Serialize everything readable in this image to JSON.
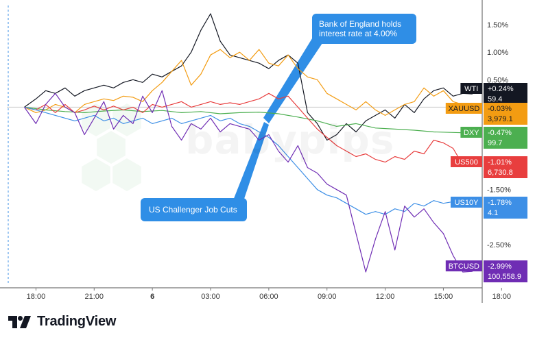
{
  "chart_data": {
    "type": "line",
    "title": "",
    "xlabel": "",
    "ylabel": "",
    "x_ticks": [
      "18:00",
      "21:00",
      "6",
      "03:00",
      "06:00",
      "09:00",
      "12:00",
      "15:00",
      "18:00"
    ],
    "y_ticks": [
      "1.50%",
      "1.00%",
      "0.50%",
      "-1.50%",
      "-2.50%"
    ],
    "ylim": [
      -3.2,
      1.85
    ],
    "y_unit": "%",
    "x_range_hours": [
      -7.5,
      17
    ],
    "series": [
      {
        "name": "WTI",
        "color": "#131722",
        "badge_value": "+0.24%",
        "badge_price": "59.4",
        "x": [
          -6.6,
          -6,
          -5.5,
          -5,
          -4.5,
          -4,
          -3.5,
          -3,
          -2.5,
          -2,
          -1.5,
          -1,
          -0.5,
          0,
          0.5,
          1,
          1.5,
          2,
          2.5,
          3,
          3.5,
          4,
          4.5,
          5,
          5.5,
          6,
          6.5,
          7,
          7.5,
          8,
          8.5,
          9,
          9.5,
          10,
          10.5,
          11,
          11.5,
          12,
          12.5,
          13,
          13.5,
          14,
          14.5,
          15,
          15.5,
          16,
          16.5
        ],
        "y": [
          0,
          0.15,
          0.3,
          0.25,
          0.35,
          0.2,
          0.3,
          0.35,
          0.4,
          0.35,
          0.45,
          0.5,
          0.45,
          0.6,
          0.55,
          0.65,
          0.75,
          1.0,
          1.4,
          1.7,
          1.2,
          0.95,
          0.9,
          0.85,
          0.8,
          0.7,
          0.85,
          0.95,
          0.8,
          -0.1,
          -0.3,
          -0.6,
          -0.5,
          -0.3,
          -0.45,
          -0.25,
          -0.15,
          -0.05,
          -0.2,
          0.05,
          -0.1,
          0.15,
          0.3,
          0.35,
          0.2,
          0.25,
          0.24
        ]
      },
      {
        "name": "XAUUSD",
        "color": "#f39c12",
        "badge_value": "-0.03%",
        "badge_price": "3,979.1",
        "x": [
          -6.6,
          -6,
          -5.5,
          -5,
          -4.5,
          -4,
          -3.5,
          -3,
          -2.5,
          -2,
          -1.5,
          -1,
          -0.5,
          0,
          0.5,
          1,
          1.5,
          2,
          2.5,
          3,
          3.5,
          4,
          4.5,
          5,
          5.5,
          6,
          6.5,
          7,
          7.5,
          8,
          8.5,
          9,
          9.5,
          10,
          10.5,
          11,
          11.5,
          12,
          12.5,
          13,
          13.5,
          14,
          14.5,
          15,
          15.5,
          16,
          16.5
        ],
        "y": [
          0,
          -0.1,
          -0.05,
          0.05,
          0,
          -0.1,
          0.05,
          0.1,
          0.15,
          0.12,
          0.2,
          0.18,
          0.1,
          0.3,
          0.45,
          0.65,
          0.85,
          0.4,
          0.6,
          0.95,
          1.05,
          0.9,
          1.0,
          0.85,
          1.05,
          0.8,
          0.75,
          0.95,
          0.7,
          0.55,
          0.5,
          0.25,
          0.15,
          0.05,
          -0.05,
          0.1,
          -0.05,
          -0.15,
          -0.05,
          0.05,
          0.1,
          0.35,
          0.2,
          0.3,
          0.1,
          0.05,
          -0.03
        ]
      },
      {
        "name": "DXY",
        "color": "#4caf50",
        "badge_value": "-0.47%",
        "badge_price": "99.7",
        "x": [
          -6.6,
          -5.5,
          -4.5,
          -3.5,
          -2.5,
          -1.5,
          -0.5,
          0.5,
          1.5,
          2.5,
          3.5,
          4.5,
          5.5,
          6.5,
          7.5,
          8.5,
          9.5,
          10.5,
          11.5,
          12.5,
          13.5,
          14.5,
          15.5,
          16.5
        ],
        "y": [
          0,
          -0.05,
          -0.08,
          -0.1,
          -0.07,
          -0.05,
          -0.08,
          -0.06,
          -0.1,
          -0.08,
          -0.12,
          -0.1,
          -0.09,
          -0.12,
          -0.18,
          -0.25,
          -0.35,
          -0.3,
          -0.38,
          -0.4,
          -0.42,
          -0.45,
          -0.46,
          -0.47
        ]
      },
      {
        "name": "US500",
        "color": "#e83e3e",
        "badge_value": "-1.01%",
        "badge_price": "6,730.8",
        "x": [
          -6.6,
          -6,
          -5.5,
          -5,
          -4.5,
          -4,
          -3.5,
          -3,
          -2.5,
          -2,
          -1.5,
          -1,
          -0.5,
          0,
          0.5,
          1,
          1.5,
          2,
          2.5,
          3,
          3.5,
          4,
          4.5,
          5,
          5.5,
          6,
          6.5,
          7,
          7.5,
          8,
          8.5,
          9,
          9.5,
          10,
          10.5,
          11,
          11.5,
          12,
          12.5,
          13,
          13.5,
          14,
          14.5,
          15,
          15.5,
          16,
          16.5
        ],
        "y": [
          0,
          -0.05,
          0.05,
          -0.1,
          0.05,
          -0.1,
          -0.05,
          0.02,
          -0.05,
          0.02,
          -0.05,
          0.0,
          -0.1,
          0.05,
          0.0,
          0.05,
          0.1,
          0.0,
          0.05,
          0.1,
          0.05,
          0.08,
          0.05,
          0.1,
          0.15,
          0.25,
          0.15,
          0.2,
          0.0,
          -0.2,
          -0.4,
          -0.55,
          -0.7,
          -0.8,
          -0.9,
          -0.85,
          -0.95,
          -1.0,
          -0.9,
          -0.95,
          -0.8,
          -0.85,
          -0.6,
          -0.65,
          -0.75,
          -1.05,
          -1.01
        ]
      },
      {
        "name": "US10Y",
        "color": "#3d8fe6",
        "badge_value": "-1.78%",
        "badge_price": "4.1",
        "x": [
          -6.6,
          -6,
          -5.5,
          -5,
          -4.5,
          -4,
          -3.5,
          -3,
          -2.5,
          -2,
          -1.5,
          -1,
          -0.5,
          0,
          0.5,
          1,
          1.5,
          2,
          2.5,
          3,
          3.5,
          4,
          4.5,
          5,
          5.5,
          6,
          6.5,
          7,
          7.5,
          8,
          8.5,
          9,
          9.5,
          10,
          10.5,
          11,
          11.5,
          12,
          12.5,
          13,
          13.5,
          14,
          14.5,
          15,
          15.5,
          16,
          16.5
        ],
        "y": [
          0,
          -0.05,
          -0.1,
          -0.15,
          -0.2,
          -0.25,
          -0.2,
          -0.15,
          -0.25,
          -0.2,
          -0.3,
          -0.25,
          -0.2,
          -0.3,
          -0.25,
          -0.2,
          -0.3,
          -0.25,
          -0.2,
          -0.15,
          -0.25,
          -0.2,
          -0.3,
          -0.35,
          -0.45,
          -0.55,
          -0.7,
          -0.9,
          -1.1,
          -1.3,
          -1.5,
          -1.6,
          -1.65,
          -1.75,
          -1.85,
          -1.95,
          -1.9,
          -1.95,
          -1.85,
          -1.9,
          -1.75,
          -1.8,
          -1.7,
          -1.75,
          -1.72,
          -1.75,
          -1.78
        ]
      },
      {
        "name": "BTCUSD",
        "color": "#6f2db4",
        "badge_value": "-2.99%",
        "badge_price": "100,558.9",
        "x": [
          -6.6,
          -6,
          -5.5,
          -5,
          -4.5,
          -4,
          -3.5,
          -3,
          -2.5,
          -2,
          -1.5,
          -1,
          -0.5,
          0,
          0.5,
          1,
          1.5,
          2,
          2.5,
          3,
          3.5,
          4,
          4.5,
          5,
          5.5,
          6,
          6.5,
          7,
          7.5,
          8,
          8.5,
          9,
          9.5,
          10,
          10.5,
          11,
          11.5,
          12,
          12.5,
          13,
          13.5,
          14,
          14.5,
          15,
          15.5,
          16,
          16.5
        ],
        "y": [
          0,
          -0.3,
          0.05,
          0.25,
          0.0,
          -0.1,
          -0.5,
          -0.2,
          0.1,
          -0.4,
          -0.15,
          -0.3,
          0.2,
          -0.1,
          0.3,
          -0.35,
          -0.6,
          -0.3,
          -0.4,
          -0.2,
          -0.45,
          -0.3,
          -0.35,
          -0.4,
          -0.6,
          -0.5,
          -0.8,
          -1.0,
          -0.7,
          -1.1,
          -1.2,
          -1.4,
          -1.5,
          -1.6,
          -2.3,
          -3.0,
          -2.4,
          -1.9,
          -2.6,
          -1.8,
          -2.0,
          -1.85,
          -2.1,
          -2.3,
          -2.7,
          -3.0,
          -2.99
        ]
      }
    ],
    "annotations": [
      {
        "text": "Bank of England holds interest rate at 4.00%"
      },
      {
        "text": "US Challenger Job Cuts"
      }
    ],
    "legend": "right-badges",
    "grid": false
  },
  "branding": {
    "logo_text": "TradingView",
    "watermark": "babypips"
  },
  "colors": {
    "callout": "#2f8ee6",
    "axis": "#333333"
  }
}
